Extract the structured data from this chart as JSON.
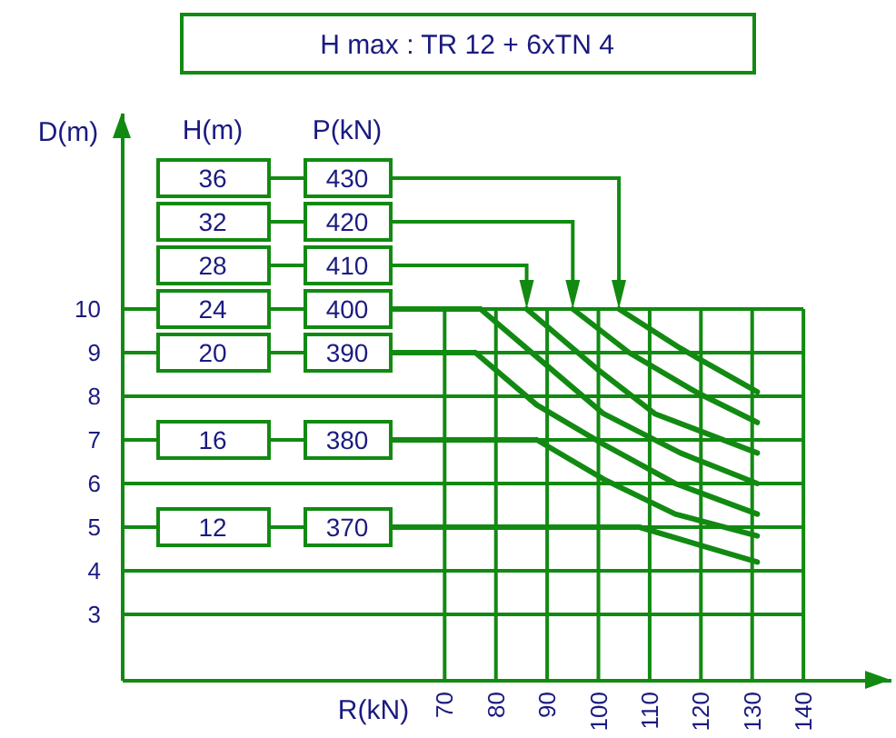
{
  "chart_data": {
    "type": "line",
    "title": "H max :  TR 12 + 6xTN 4",
    "xlabel": "R(kN)",
    "ylabel": "D(m)",
    "legend_title": "P(kN)",
    "legend": "left",
    "grid": "y",
    "ref_lines": [
      {
        "axis": "x",
        "value": 70
      },
      {
        "axis": "x",
        "value": 80
      },
      {
        "axis": "x",
        "value": 90
      },
      {
        "axis": "x",
        "value": 100
      },
      {
        "axis": "x",
        "value": 110
      },
      {
        "axis": "x",
        "value": 120
      },
      {
        "axis": "x",
        "value": 130
      },
      {
        "axis": "x",
        "value": 140
      }
    ],
    "xlim": [
      7,
      157
    ],
    "ylim": [
      1.5,
      14.5
    ],
    "xticks": [
      70,
      80,
      90,
      100,
      110,
      120,
      130,
      140
    ],
    "yticks": [
      3,
      4,
      5,
      6,
      7,
      8,
      9,
      10
    ],
    "annotations": [
      "H(m)",
      "36",
      "32",
      "28",
      "24",
      "20",
      "16",
      "12"
    ],
    "series": [
      {
        "name": "430",
        "color": "#128a12",
        "x": [
          104,
          116,
          131
        ],
        "values": [
          10,
          9.1,
          8.1
        ]
      },
      {
        "name": "420",
        "color": "#128a12",
        "x": [
          95,
          106,
          119,
          131
        ],
        "values": [
          10,
          9.0,
          8.1,
          7.4
        ]
      },
      {
        "name": "410",
        "color": "#128a12",
        "x": [
          86,
          100,
          111,
          131
        ],
        "values": [
          10,
          8.6,
          7.6,
          6.7
        ]
      },
      {
        "name": "400",
        "color": "#128a12",
        "x": [
          77,
          89,
          101,
          116,
          131
        ],
        "values": [
          10,
          8.8,
          7.6,
          6.7,
          6.0
        ]
      },
      {
        "name": "390",
        "color": "#128a12",
        "x": [
          76,
          88,
          101,
          115,
          131
        ],
        "values": [
          9,
          7.8,
          6.9,
          6.0,
          5.3
        ]
      },
      {
        "name": "380",
        "color": "#128a12",
        "x": [
          88,
          101,
          115,
          131
        ],
        "values": [
          7,
          6.1,
          5.3,
          4.8
        ]
      },
      {
        "name": "370",
        "color": "#128a12",
        "x": [
          108,
          131
        ],
        "values": [
          5,
          4.2
        ]
      }
    ]
  }
}
